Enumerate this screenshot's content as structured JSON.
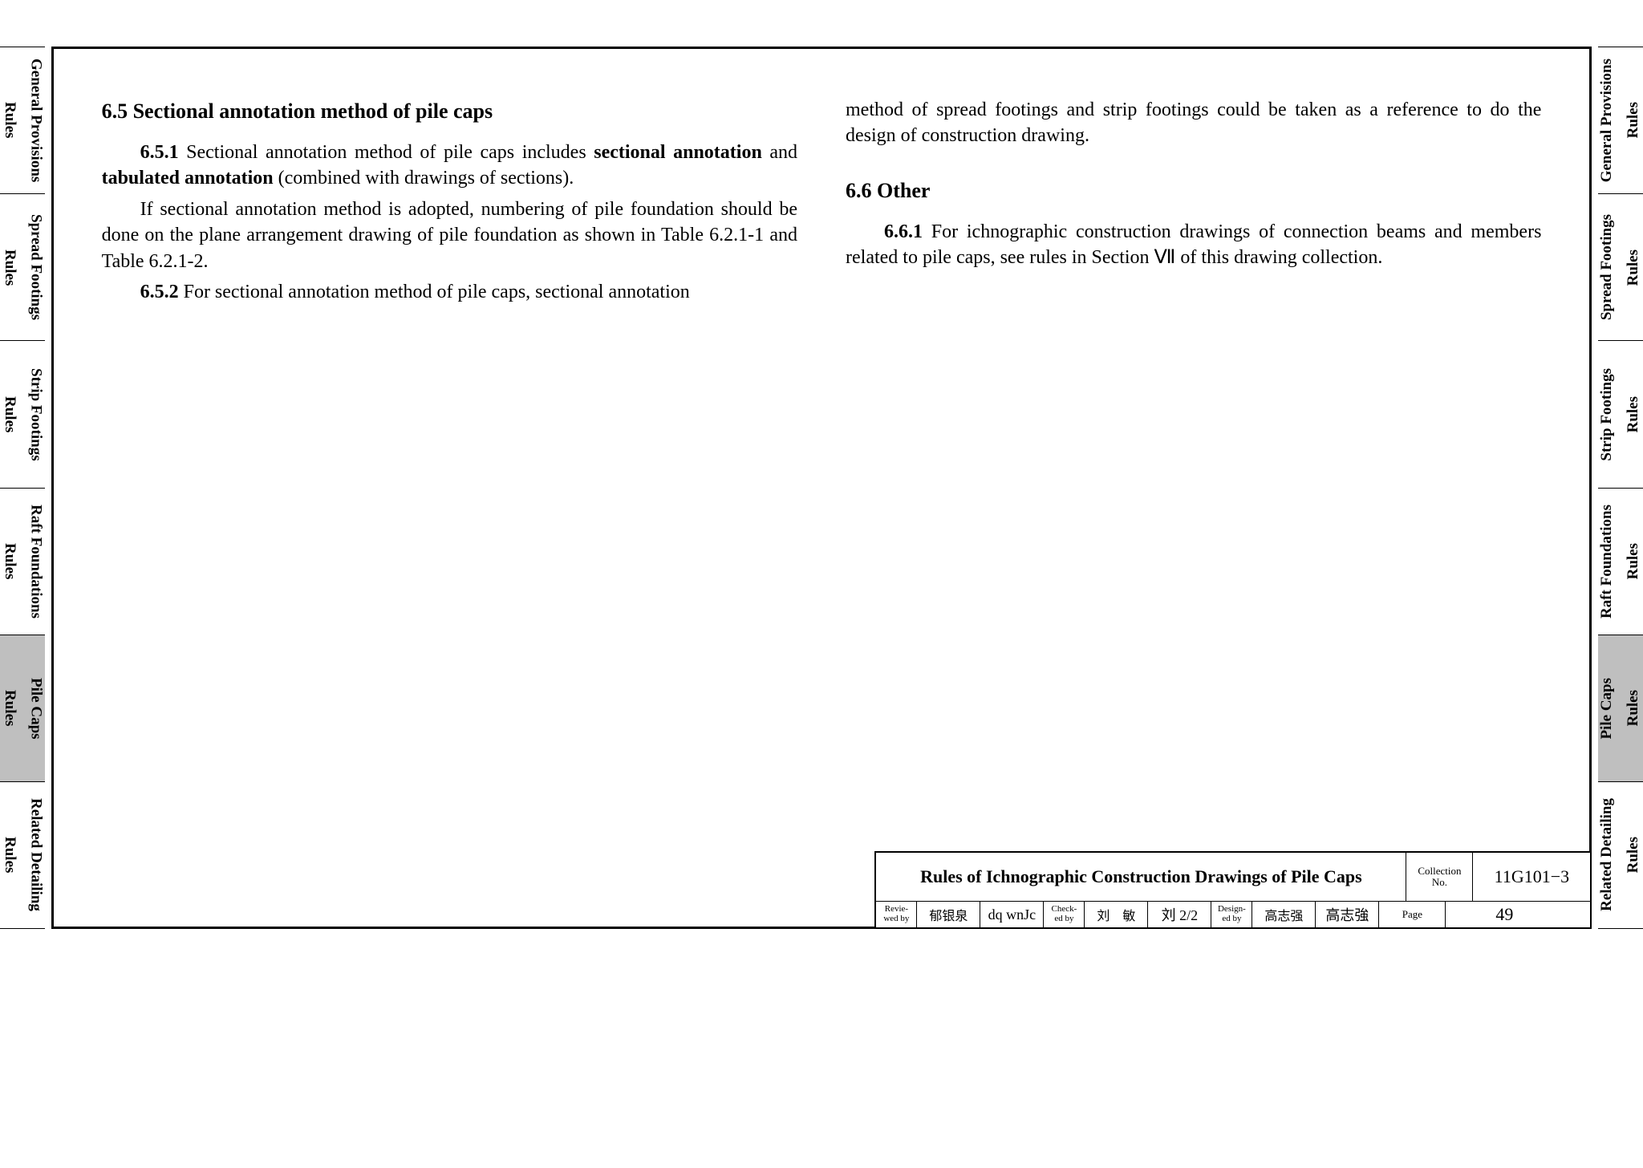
{
  "tabs": [
    {
      "line1": "Rules",
      "line2": "General Provisions",
      "active": false
    },
    {
      "line1": "Rules",
      "line2": "Spread Footings",
      "active": false
    },
    {
      "line1": "Rules",
      "line2": "Strip Footings",
      "active": false
    },
    {
      "line1": "Rules",
      "line2": "Raft Foundations",
      "active": false
    },
    {
      "line1": "Rules",
      "line2": "Pile Caps",
      "active": true
    },
    {
      "line1": "Rules",
      "line2": "Related Detailing",
      "active": false
    }
  ],
  "left_col": {
    "h65": "6.5  Sectional annotation method of pile caps",
    "p651a": "6.5.1",
    "p651b": "Sectional annotation method of pile caps includes ",
    "p651c": "sectional annotation",
    "p651d": " and ",
    "p651e": "tabulated annotation",
    "p651f": " (combined with drawings of sections).",
    "p651g": "If sectional annotation method is adopted, numbering of pile foundation should be done on the plane arrangement drawing of pile foundation as shown in Table 6.2.1-1 and Table 6.2.1-2.",
    "p652a": "6.5.2",
    "p652b": "For sectional annotation method of pile caps, sectional annotation"
  },
  "right_col": {
    "cont": "method of spread footings and strip footings could be taken as a reference to do the design of construction drawing.",
    "h66": "6.6  Other",
    "p661a": "6.6.1",
    "p661b": "For ichnographic construction drawings of connection beams and members related to pile caps, see rules in Section Ⅶ of this drawing collection."
  },
  "titleblock": {
    "title": "Rules of Ichnographic Construction Drawings of Pile Caps",
    "collection_label": "Collection No.",
    "collection_no": "11G101−3",
    "page_label": "Page",
    "page_no": "49",
    "sigs": [
      {
        "label": "Revie-\nwed by",
        "name": "郁银泉",
        "script": ""
      },
      {
        "label": "",
        "name": "",
        "script": "dq wnJc"
      },
      {
        "label": "Check-\ned by",
        "name": "刘　敏",
        "script": ""
      },
      {
        "label": "",
        "name": "",
        "script": "刘 2/2"
      },
      {
        "label": "Design-\ned by",
        "name": "高志强",
        "script": ""
      },
      {
        "label": "",
        "name": "",
        "script": "高志強"
      }
    ]
  },
  "colors": {
    "frame_border": "#000000",
    "tab_active_bg": "#bfbfbf",
    "tab_bg": "#ffffff",
    "text": "#000000",
    "page_bg": "#ffffff"
  },
  "fonts": {
    "body": "Times New Roman",
    "body_size_pt": 18,
    "heading_size_pt": 20,
    "tab_size_pt": 14,
    "titleblock_title_pt": 17
  }
}
